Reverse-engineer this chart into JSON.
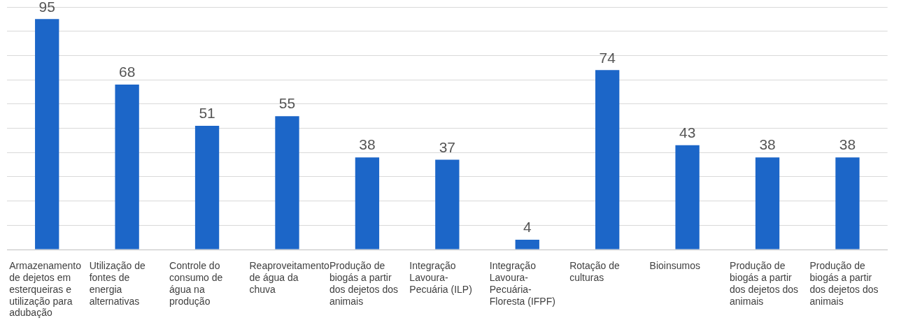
{
  "chart_data": {
    "type": "bar",
    "categories": [
      "Armazenamento de dejetos em esterqueiras e utilização para adubação",
      "Utilização de fontes de energia alternativas",
      "Controle do consumo de água na produção",
      "Reaproveitamento de água da chuva",
      "Produção de biogás a partir dos dejetos dos animais",
      "Integração Lavoura-Pecuária (ILP)",
      "Integração Lavoura-Pecuária-Floresta (IFPF)",
      "Rotação de culturas",
      "Bioinsumos",
      "Produção de biogás a partir dos dejetos dos animais",
      "Produção de biogás a partir dos dejetos dos animais"
    ],
    "values": [
      95,
      68,
      51,
      55,
      38,
      37,
      4,
      74,
      43,
      38,
      38
    ],
    "color": "#1c66c8",
    "ylim": [
      0,
      100
    ],
    "yticks": [
      {
        "value": 0,
        "label": null
      },
      {
        "value": 10,
        "label": null
      },
      {
        "value": 20,
        "label": null
      },
      {
        "value": 30,
        "label": null
      },
      {
        "value": 40,
        "label": null
      },
      {
        "value": 50,
        "label": null
      },
      {
        "value": 60,
        "label": null
      },
      {
        "value": 70,
        "label": null
      },
      {
        "value": 80,
        "label": null
      },
      {
        "value": 90,
        "label": null
      },
      {
        "value": 100,
        "label": null
      }
    ],
    "grid": "y",
    "tick_labels": "x",
    "data_labels": true
  }
}
